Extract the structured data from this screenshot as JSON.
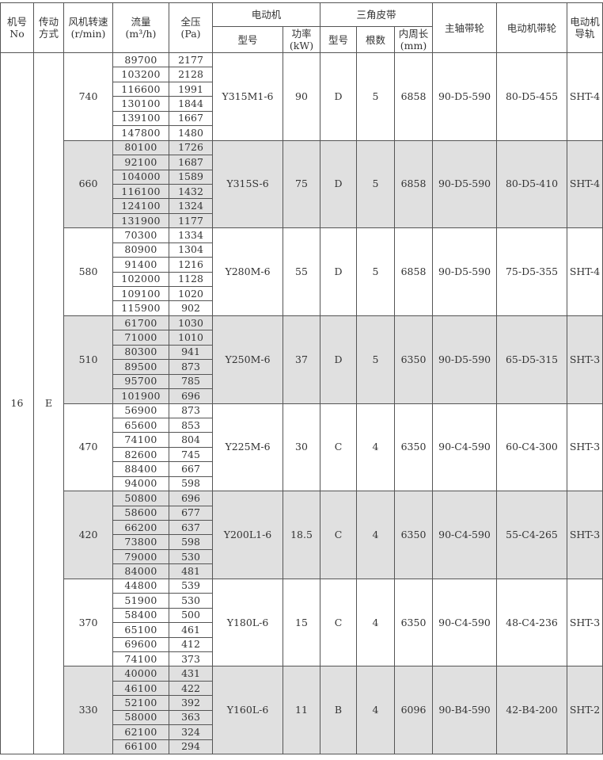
{
  "header": {
    "no": [
      "机号",
      "No"
    ],
    "drive": [
      "传动",
      "方式"
    ],
    "speed": [
      "风机转速",
      "(r/min)"
    ],
    "flow": [
      "流量",
      "(m³/h)"
    ],
    "pressure": [
      "全压",
      "(Pa)"
    ],
    "motor": "电动机",
    "motor_model": "型号",
    "motor_power": [
      "功率",
      "(kW)"
    ],
    "belt": "三角皮带",
    "belt_model": "型号",
    "belt_count": "根数",
    "belt_length": [
      "内周长",
      "(mm)"
    ],
    "main_pulley": "主轴带轮",
    "motor_pulley": "电动机带轮",
    "rail": [
      "电动机",
      "导轨"
    ]
  },
  "machine_no": "16",
  "drive_type": "E",
  "shade_color": "#e0e0e0",
  "groups": [
    {
      "speed": "740",
      "flows": [
        "89700",
        "103200",
        "116600",
        "130100",
        "139100",
        "147800"
      ],
      "pressures": [
        "2177",
        "2128",
        "1991",
        "1844",
        "1667",
        "1480"
      ],
      "motor_model": "Y315M1-6",
      "power": "90",
      "belt_model": "D",
      "belt_count": "5",
      "belt_length": "6858",
      "main_pulley": "90-D5-590",
      "motor_pulley": "80-D5-455",
      "rail": "SHT-4",
      "shaded": false
    },
    {
      "speed": "660",
      "flows": [
        "80100",
        "92100",
        "104000",
        "116100",
        "124100",
        "131900"
      ],
      "pressures": [
        "1726",
        "1687",
        "1589",
        "1432",
        "1324",
        "1177"
      ],
      "motor_model": "Y315S-6",
      "power": "75",
      "belt_model": "D",
      "belt_count": "5",
      "belt_length": "6858",
      "main_pulley": "90-D5-590",
      "motor_pulley": "80-D5-410",
      "rail": "SHT-4",
      "shaded": true
    },
    {
      "speed": "580",
      "flows": [
        "70300",
        "80900",
        "91400",
        "102000",
        "109100",
        "115900"
      ],
      "pressures": [
        "1334",
        "1304",
        "1216",
        "1128",
        "1020",
        "902"
      ],
      "motor_model": "Y280M-6",
      "power": "55",
      "belt_model": "D",
      "belt_count": "5",
      "belt_length": "6858",
      "main_pulley": "90-D5-590",
      "motor_pulley": "75-D5-355",
      "rail": "SHT-4",
      "shaded": false
    },
    {
      "speed": "510",
      "flows": [
        "61700",
        "71000",
        "80300",
        "89500",
        "95700",
        "101900"
      ],
      "pressures": [
        "1030",
        "1010",
        "941",
        "873",
        "785",
        "696"
      ],
      "motor_model": "Y250M-6",
      "power": "37",
      "belt_model": "D",
      "belt_count": "5",
      "belt_length": "6350",
      "main_pulley": "90-D5-590",
      "motor_pulley": "65-D5-315",
      "rail": "SHT-3",
      "shaded": true
    },
    {
      "speed": "470",
      "flows": [
        "56900",
        "65600",
        "74100",
        "82600",
        "88400",
        "94000"
      ],
      "pressures": [
        "873",
        "853",
        "804",
        "745",
        "667",
        "598"
      ],
      "motor_model": "Y225M-6",
      "power": "30",
      "belt_model": "C",
      "belt_count": "4",
      "belt_length": "6350",
      "main_pulley": "90-C4-590",
      "motor_pulley": "60-C4-300",
      "rail": "SHT-3",
      "shaded": false
    },
    {
      "speed": "420",
      "flows": [
        "50800",
        "58600",
        "66200",
        "73800",
        "79000",
        "84000"
      ],
      "pressures": [
        "696",
        "677",
        "637",
        "598",
        "530",
        "481"
      ],
      "motor_model": "Y200L1-6",
      "power": "18.5",
      "belt_model": "C",
      "belt_count": "4",
      "belt_length": "6350",
      "main_pulley": "90-C4-590",
      "motor_pulley": "55-C4-265",
      "rail": "SHT-3",
      "shaded": true
    },
    {
      "speed": "370",
      "flows": [
        "44800",
        "51900",
        "58400",
        "65100",
        "69600",
        "74100"
      ],
      "pressures": [
        "539",
        "530",
        "500",
        "461",
        "412",
        "373"
      ],
      "motor_model": "Y180L-6",
      "power": "15",
      "belt_model": "C",
      "belt_count": "4",
      "belt_length": "6350",
      "main_pulley": "90-C4-590",
      "motor_pulley": "48-C4-236",
      "rail": "SHT-3",
      "shaded": false
    },
    {
      "speed": "330",
      "flows": [
        "40000",
        "46100",
        "52100",
        "58000",
        "62100",
        "66100"
      ],
      "pressures": [
        "431",
        "422",
        "392",
        "363",
        "324",
        "294"
      ],
      "motor_model": "Y160L-6",
      "power": "11",
      "belt_model": "B",
      "belt_count": "4",
      "belt_length": "6096",
      "main_pulley": "90-B4-590",
      "motor_pulley": "42-B4-200",
      "rail": "SHT-2",
      "shaded": true
    }
  ]
}
